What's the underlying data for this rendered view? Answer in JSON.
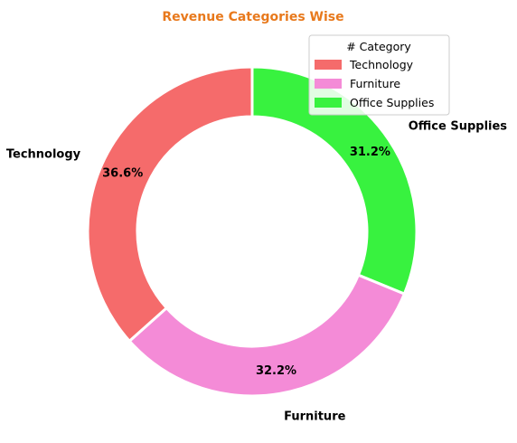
{
  "chart_data": {
    "type": "pie",
    "title": "Revenue Categories Wise",
    "title_color": "#e8791c",
    "donut": true,
    "start_angle_deg": 90,
    "direction": "clockwise",
    "legend": {
      "title": "# Category",
      "position": "top-right",
      "entries": [
        "Technology",
        "Furniture",
        "Office Supplies"
      ]
    },
    "categories": [
      "Office Supplies",
      "Furniture",
      "Technology"
    ],
    "values": [
      31.2,
      32.2,
      36.6
    ],
    "percent_labels": [
      "31.2%",
      "32.2%",
      "36.6%"
    ],
    "colors": [
      "#38f23f",
      "#f48bd7",
      "#f56b6b"
    ],
    "edge_color": "#ffffff"
  }
}
